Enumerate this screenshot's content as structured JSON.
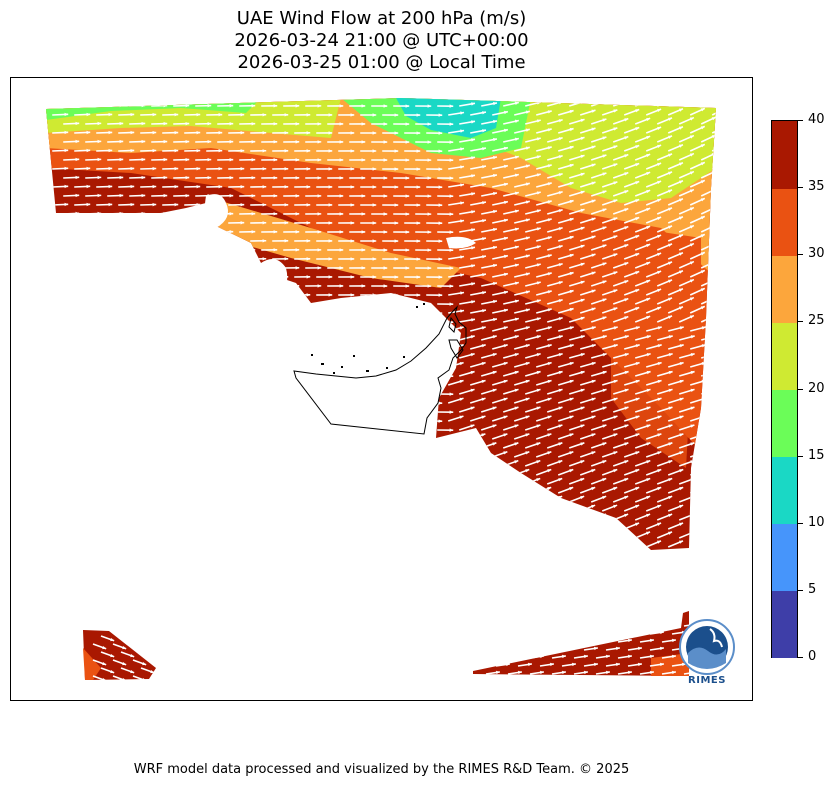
{
  "title": {
    "line1": "UAE Wind Flow at 200 hPa (m/s)",
    "line2": "2026-03-24 21:00 @ UTC+00:00",
    "line3": "2026-03-25 01:00 @ Local Time"
  },
  "colorbar": {
    "ticks": [
      "0",
      "5",
      "10",
      "15",
      "20",
      "25",
      "30",
      "35",
      "40"
    ],
    "colors": [
      "#3e3ea8",
      "#4695fb",
      "#1ad8c5",
      "#6bfd58",
      "#cfea32",
      "#fca63c",
      "#ea5212",
      "#a91801"
    ]
  },
  "logo": {
    "label": "RIMES",
    "icon": "rimes-globe-logo-icon"
  },
  "footer": "WRF model data processed and visualized by the RIMES R&D Team. © 2025"
}
